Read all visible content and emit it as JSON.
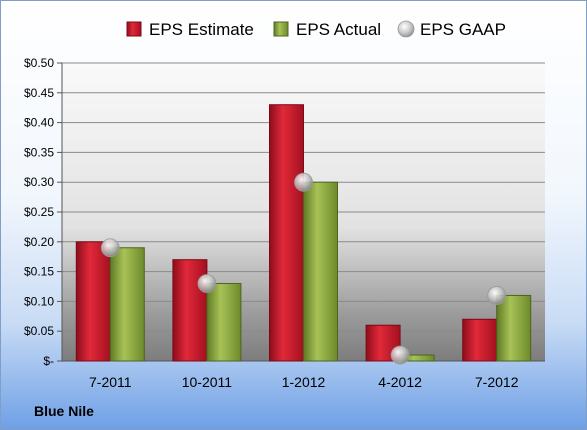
{
  "company_label": "Blue Nile",
  "chart_data": {
    "type": "bar",
    "categories": [
      "7-2011",
      "10-2011",
      "1-2012",
      "4-2012",
      "7-2012"
    ],
    "series": [
      {
        "name": "EPS Estimate",
        "mark": "bar",
        "color": "#c8102e",
        "values": [
          0.2,
          0.17,
          0.43,
          0.06,
          0.07
        ]
      },
      {
        "name": "EPS Actual",
        "mark": "bar",
        "color": "#8fac3c",
        "values": [
          0.19,
          0.13,
          0.3,
          0.01,
          0.11
        ]
      },
      {
        "name": "EPS GAAP",
        "mark": "point",
        "color": "#b8b8b8",
        "values": [
          0.19,
          0.13,
          0.3,
          0.01,
          0.11
        ]
      }
    ],
    "yticks": [
      "$-",
      "$0.05",
      "$0.10",
      "$0.15",
      "$0.20",
      "$0.25",
      "$0.30",
      "$0.35",
      "$0.40",
      "$0.45",
      "$0.50"
    ],
    "ylim": [
      0,
      0.5
    ],
    "grid": true,
    "legend_position": "top"
  }
}
